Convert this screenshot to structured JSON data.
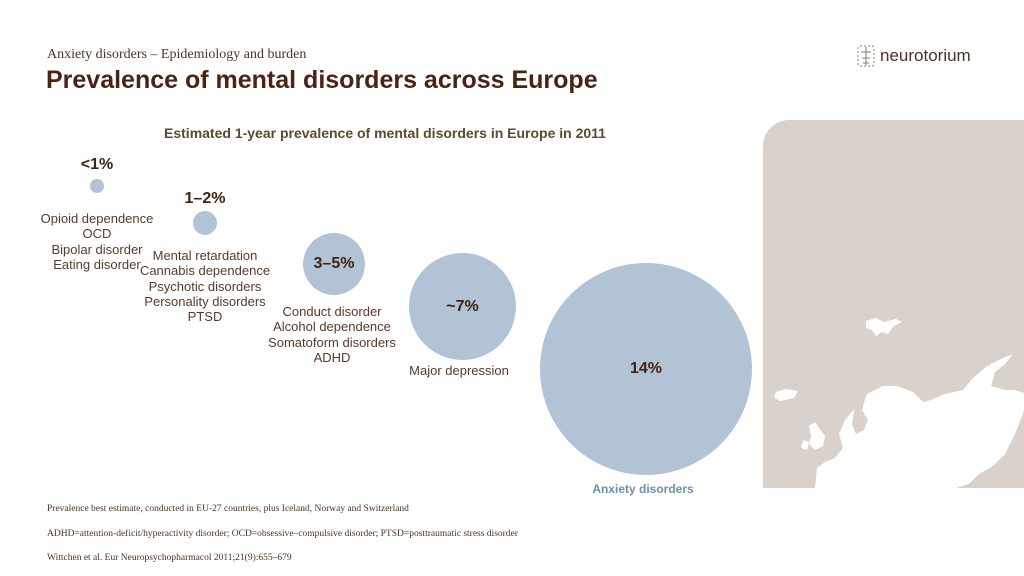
{
  "header": {
    "subtitle": "Anxiety disorders – Epidemiology and burden",
    "title": "Prevalence of mental disorders across Europe",
    "logo_text": "neurotorium"
  },
  "chart_data": {
    "type": "bubble",
    "title": "Estimated 1-year prevalence of mental disorders in Europe in 2011",
    "bubble_color": "#b1c3d4",
    "groups": [
      {
        "label": "<1%",
        "approx_value": 1,
        "disorders": [
          "Opioid dependence",
          "OCD",
          "Bipolar disorder",
          "Eating disorder"
        ]
      },
      {
        "label": "1–2%",
        "approx_value": 1.5,
        "disorders": [
          "Mental retardation",
          "Cannabis dependence",
          "Psychotic disorders",
          "Personality disorders",
          "PTSD"
        ]
      },
      {
        "label": "3–5%",
        "approx_value": 4,
        "disorders": [
          "Conduct disorder",
          "Alcohol dependence",
          "Somatoform disorders",
          "ADHD"
        ]
      },
      {
        "label": "~7%",
        "approx_value": 7,
        "disorders": [
          "Major depression"
        ]
      },
      {
        "label": "14%",
        "approx_value": 14,
        "disorders": [
          "Anxiety disorders"
        ]
      }
    ]
  },
  "footnotes": [
    "Prevalence best estimate, conducted in EU-27 countries, plus Iceland, Norway and Switzerland",
    "ADHD=attention-deficit/hyperactivity disorder; OCD=obsessive–compulsive disorder; PTSD=posttraumatic stress disorder",
    "Wittchen et al. Eur Neuropsychopharmacol 2011;21(9):655–679"
  ]
}
